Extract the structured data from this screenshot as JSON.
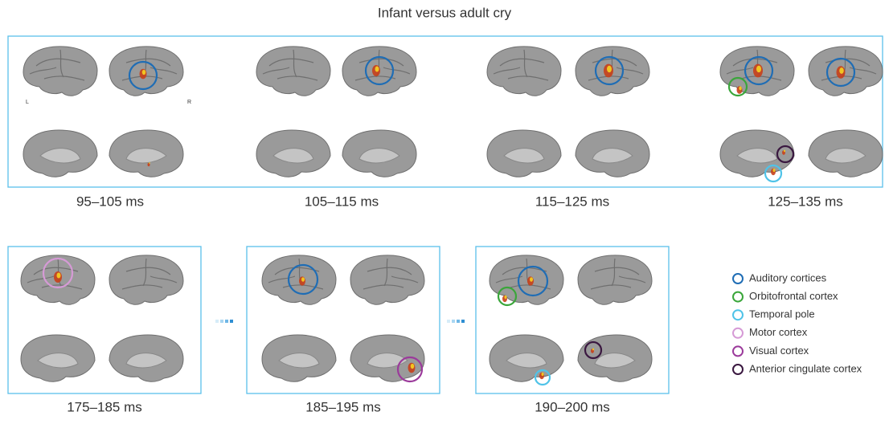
{
  "title": "Infant versus adult cry",
  "top_panels": [
    {
      "label": "95–105 ms"
    },
    {
      "label": "105–115 ms"
    },
    {
      "label": "115–125 ms"
    },
    {
      "label": "125–135 ms"
    }
  ],
  "bottom_panels": [
    {
      "label": "175–185 ms"
    },
    {
      "label": "185–195 ms"
    },
    {
      "label": "190–200 ms"
    }
  ],
  "hemisphere_labels": [
    "L",
    "R"
  ],
  "legend": [
    {
      "label": "Auditory cortices",
      "color": "#1f6db5"
    },
    {
      "label": "Orbitofrontal cortex",
      "color": "#3aa63a"
    },
    {
      "label": "Temporal pole",
      "color": "#4fc3e8"
    },
    {
      "label": "Motor cortex",
      "color": "#d69ad6"
    },
    {
      "label": "Visual cortex",
      "color": "#9b3a9b"
    },
    {
      "label": "Anterior cingulate cortex",
      "color": "#3a1840"
    }
  ]
}
